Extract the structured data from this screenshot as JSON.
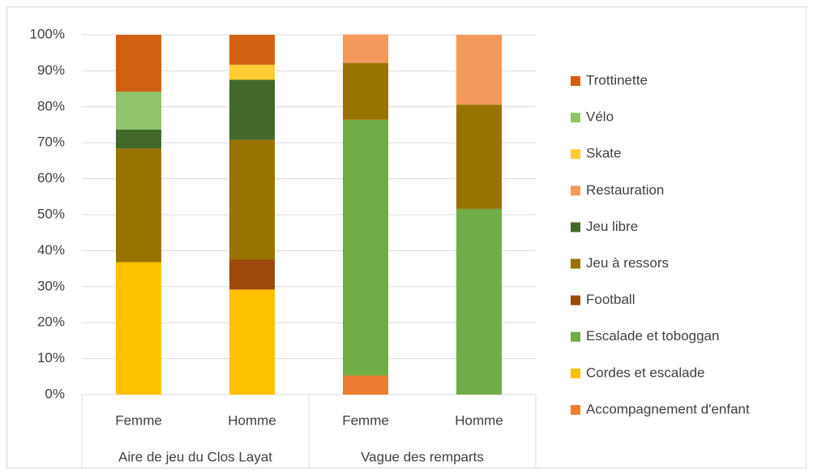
{
  "chart_data": {
    "type": "stacked_bar",
    "categories": [
      "Femme",
      "Homme",
      "Femme",
      "Homme"
    ],
    "groups": [
      "Aire de jeu du Clos Layat",
      "Vague des remparts"
    ],
    "series": [
      {
        "name": "Accompagnement d'enfant",
        "color": "#ED7D31",
        "values": [
          null,
          null,
          5.3,
          null
        ]
      },
      {
        "name": "Cordes et escalade",
        "color": "#FFC000",
        "values": [
          36.8,
          29.2,
          null,
          null
        ]
      },
      {
        "name": "Escalade et toboggan",
        "color": "#70AD47",
        "values": [
          null,
          null,
          71.1,
          51.6
        ]
      },
      {
        "name": "Football",
        "color": "#9E480E",
        "values": [
          null,
          8.3,
          null,
          null
        ]
      },
      {
        "name": "Jeu à ressors",
        "color": "#997300",
        "values": [
          31.6,
          33.3,
          15.8,
          29.0
        ]
      },
      {
        "name": "Jeu libre",
        "color": "#43682B",
        "values": [
          5.3,
          16.7,
          null,
          null
        ]
      },
      {
        "name": "Restauration",
        "color": "#F4995C",
        "values": [
          null,
          null,
          7.9,
          19.4
        ]
      },
      {
        "name": "Skate",
        "color": "#FFCD33",
        "values": [
          null,
          4.2,
          null,
          null
        ]
      },
      {
        "name": "Vélo",
        "color": "#8FC36C",
        "values": [
          10.5,
          null,
          null,
          null
        ]
      },
      {
        "name": "Trottinette",
        "color": "#D26012",
        "values": [
          15.8,
          8.3,
          null,
          null
        ]
      }
    ],
    "ylim": [
      0,
      100
    ],
    "yticks": [
      {
        "value": 0,
        "label": "0%"
      },
      {
        "value": 10,
        "label": "10%"
      },
      {
        "value": 20,
        "label": "20%"
      },
      {
        "value": 30,
        "label": "30%"
      },
      {
        "value": 40,
        "label": "40%"
      },
      {
        "value": 50,
        "label": "50%"
      },
      {
        "value": 60,
        "label": "60%"
      },
      {
        "value": 70,
        "label": "70%"
      },
      {
        "value": 80,
        "label": "80%"
      },
      {
        "value": 90,
        "label": "90%"
      },
      {
        "value": 100,
        "label": "100%"
      }
    ],
    "grid": true,
    "legend": "right"
  }
}
